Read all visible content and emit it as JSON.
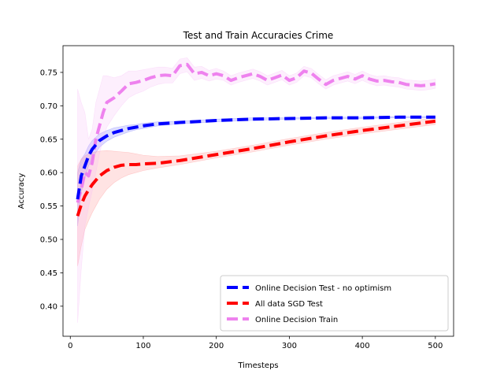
{
  "chart_data": {
    "type": "line",
    "title": "Test and Train Accuracies Crime",
    "xlabel": "Timesteps",
    "ylabel": "Accuracy",
    "xlim": [
      -10,
      525
    ],
    "ylim": [
      0.355,
      0.79
    ],
    "xticks": [
      0,
      100,
      200,
      300,
      400,
      500
    ],
    "xtick_labels": [
      "0",
      "100",
      "200",
      "300",
      "400",
      "500"
    ],
    "yticks": [
      0.4,
      0.45,
      0.5,
      0.55,
      0.6,
      0.65,
      0.7,
      0.75
    ],
    "ytick_labels": [
      "0.40",
      "0.45",
      "0.50",
      "0.55",
      "0.60",
      "0.65",
      "0.70",
      "0.75"
    ],
    "grid": false,
    "legend_position": "lower-right",
    "series": [
      {
        "name": "Online Decision Test - no optimism",
        "color": "#0000ff",
        "band_color": "#6666ff",
        "x": [
          10,
          15,
          20,
          25,
          30,
          40,
          50,
          60,
          70,
          80,
          90,
          100,
          120,
          150,
          200,
          250,
          300,
          350,
          400,
          450,
          500
        ],
        "values": [
          0.56,
          0.595,
          0.61,
          0.625,
          0.635,
          0.648,
          0.655,
          0.66,
          0.663,
          0.666,
          0.668,
          0.67,
          0.673,
          0.675,
          0.678,
          0.68,
          0.681,
          0.682,
          0.682,
          0.683,
          0.683
        ],
        "lower": [
          0.52,
          0.57,
          0.592,
          0.61,
          0.622,
          0.638,
          0.647,
          0.653,
          0.657,
          0.661,
          0.664,
          0.666,
          0.67,
          0.673,
          0.676,
          0.678,
          0.68,
          0.681,
          0.681,
          0.682,
          0.682
        ],
        "upper": [
          0.6,
          0.62,
          0.628,
          0.64,
          0.648,
          0.658,
          0.663,
          0.667,
          0.669,
          0.671,
          0.672,
          0.674,
          0.676,
          0.677,
          0.68,
          0.682,
          0.682,
          0.683,
          0.683,
          0.684,
          0.684
        ]
      },
      {
        "name": "All data SGD Test",
        "color": "#ff0000",
        "band_color": "#ff8080",
        "x": [
          10,
          15,
          20,
          25,
          30,
          40,
          50,
          60,
          70,
          80,
          90,
          100,
          120,
          150,
          200,
          250,
          300,
          350,
          400,
          450,
          500
        ],
        "values": [
          0.535,
          0.552,
          0.565,
          0.574,
          0.582,
          0.595,
          0.603,
          0.608,
          0.611,
          0.612,
          0.612,
          0.613,
          0.614,
          0.618,
          0.627,
          0.636,
          0.646,
          0.655,
          0.663,
          0.67,
          0.677
        ],
        "lower": [
          0.46,
          0.49,
          0.515,
          0.528,
          0.54,
          0.56,
          0.575,
          0.585,
          0.592,
          0.597,
          0.6,
          0.603,
          0.607,
          0.612,
          0.622,
          0.631,
          0.641,
          0.65,
          0.658,
          0.665,
          0.672
        ],
        "upper": [
          0.61,
          0.62,
          0.625,
          0.628,
          0.63,
          0.632,
          0.633,
          0.632,
          0.631,
          0.63,
          0.628,
          0.626,
          0.624,
          0.625,
          0.632,
          0.641,
          0.651,
          0.66,
          0.668,
          0.675,
          0.682
        ]
      },
      {
        "name": "Online Decision Train",
        "color": "#ee82ee",
        "band_color": "#f5b8f5",
        "x": [
          10,
          15,
          20,
          25,
          30,
          35,
          40,
          45,
          50,
          60,
          70,
          80,
          90,
          100,
          110,
          120,
          130,
          140,
          150,
          160,
          170,
          180,
          190,
          200,
          210,
          220,
          230,
          240,
          250,
          260,
          270,
          280,
          290,
          300,
          310,
          320,
          330,
          340,
          350,
          360,
          370,
          380,
          390,
          400,
          410,
          420,
          430,
          440,
          450,
          460,
          470,
          480,
          490,
          500
        ],
        "values": [
          0.555,
          0.575,
          0.6,
          0.595,
          0.615,
          0.65,
          0.67,
          0.69,
          0.705,
          0.712,
          0.722,
          0.733,
          0.735,
          0.738,
          0.742,
          0.745,
          0.746,
          0.745,
          0.76,
          0.762,
          0.748,
          0.75,
          0.745,
          0.748,
          0.745,
          0.738,
          0.742,
          0.745,
          0.748,
          0.744,
          0.738,
          0.742,
          0.746,
          0.738,
          0.742,
          0.752,
          0.749,
          0.74,
          0.732,
          0.738,
          0.741,
          0.744,
          0.74,
          0.745,
          0.74,
          0.737,
          0.738,
          0.736,
          0.735,
          0.732,
          0.731,
          0.73,
          0.731,
          0.733
        ],
        "lower": [
          0.375,
          0.455,
          0.52,
          0.548,
          0.572,
          0.6,
          0.628,
          0.65,
          0.668,
          0.685,
          0.7,
          0.712,
          0.718,
          0.722,
          0.728,
          0.732,
          0.734,
          0.734,
          0.748,
          0.751,
          0.738,
          0.741,
          0.737,
          0.74,
          0.738,
          0.731,
          0.735,
          0.738,
          0.741,
          0.737,
          0.731,
          0.735,
          0.739,
          0.731,
          0.735,
          0.745,
          0.742,
          0.733,
          0.725,
          0.731,
          0.734,
          0.737,
          0.733,
          0.738,
          0.733,
          0.73,
          0.731,
          0.729,
          0.728,
          0.725,
          0.724,
          0.723,
          0.724,
          0.726
        ],
        "upper": [
          0.725,
          0.705,
          0.69,
          0.65,
          0.665,
          0.705,
          0.725,
          0.745,
          0.745,
          0.742,
          0.745,
          0.752,
          0.752,
          0.754,
          0.756,
          0.758,
          0.758,
          0.756,
          0.77,
          0.772,
          0.758,
          0.759,
          0.753,
          0.756,
          0.752,
          0.745,
          0.749,
          0.752,
          0.755,
          0.751,
          0.745,
          0.749,
          0.753,
          0.745,
          0.749,
          0.759,
          0.756,
          0.747,
          0.739,
          0.745,
          0.748,
          0.751,
          0.747,
          0.752,
          0.747,
          0.744,
          0.745,
          0.743,
          0.742,
          0.739,
          0.738,
          0.737,
          0.738,
          0.74
        ]
      }
    ]
  }
}
